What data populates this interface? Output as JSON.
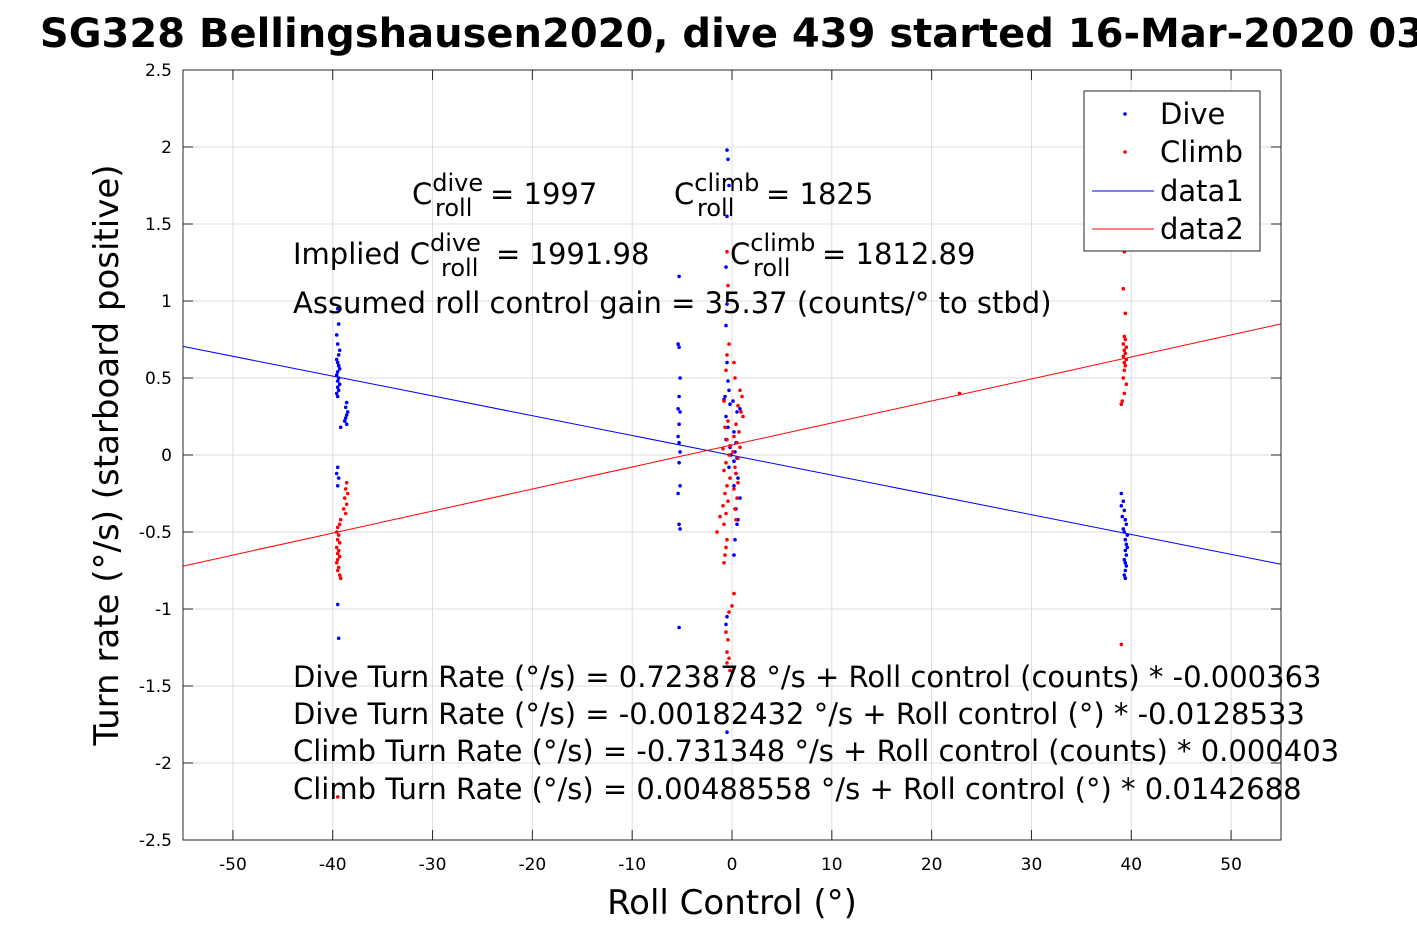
{
  "chart_data": {
    "type": "scatter",
    "title": "SG328 Bellingshausen2020, dive 439 started 16-Mar-2020 03",
    "xlabel": "Roll Control (°)",
    "ylabel": "Turn rate (°/s) (starboard positive)",
    "xlim": [
      -55,
      55
    ],
    "ylim": [
      -2.5,
      2.5
    ],
    "xticks": [
      -50,
      -40,
      -30,
      -20,
      -10,
      0,
      10,
      20,
      30,
      40,
      50
    ],
    "yticks": [
      -2.5,
      -2,
      -1.5,
      -1,
      -0.5,
      0,
      0.5,
      1,
      1.5,
      2,
      2.5
    ],
    "xtick_labels": [
      "-50",
      "-40",
      "-30",
      "-20",
      "-10",
      "0",
      "10",
      "20",
      "30",
      "40",
      "50"
    ],
    "ytick_labels": [
      "-2.5",
      "-2",
      "-1.5",
      "-1",
      "-0.5",
      "0",
      "0.5",
      "1",
      "1.5",
      "2",
      "2.5"
    ],
    "grid": true,
    "legend_position": "top-right",
    "legend": [
      "Dive",
      "Climb",
      "data1",
      "data2"
    ],
    "series": [
      {
        "name": "Dive",
        "kind": "scatter",
        "color": "#0000ff",
        "points": [
          [
            -39.5,
            0.95
          ],
          [
            -39.4,
            0.85
          ],
          [
            -39.6,
            0.78
          ],
          [
            -39.5,
            0.72
          ],
          [
            -39.3,
            0.68
          ],
          [
            -39.4,
            0.65
          ],
          [
            -39.6,
            0.62
          ],
          [
            -39.5,
            0.6
          ],
          [
            -39.4,
            0.58
          ],
          [
            -39.3,
            0.56
          ],
          [
            -39.5,
            0.54
          ],
          [
            -39.6,
            0.52
          ],
          [
            -39.4,
            0.5
          ],
          [
            -39.5,
            0.48
          ],
          [
            -39.3,
            0.46
          ],
          [
            -39.5,
            0.44
          ],
          [
            -39.4,
            0.42
          ],
          [
            -39.6,
            0.4
          ],
          [
            -39.5,
            0.38
          ],
          [
            -38.6,
            0.34
          ],
          [
            -38.7,
            0.31
          ],
          [
            -38.5,
            0.28
          ],
          [
            -38.6,
            0.26
          ],
          [
            -38.7,
            0.24
          ],
          [
            -38.8,
            0.22
          ],
          [
            -38.6,
            0.2
          ],
          [
            -39.2,
            0.18
          ],
          [
            -39.5,
            -0.08
          ],
          [
            -39.6,
            -0.12
          ],
          [
            -39.4,
            -0.15
          ],
          [
            -39.5,
            -0.2
          ],
          [
            -39.5,
            -0.97
          ],
          [
            -39.4,
            -1.19
          ],
          [
            -5.3,
            1.16
          ],
          [
            -5.4,
            0.72
          ],
          [
            -5.3,
            0.7
          ],
          [
            -5.2,
            0.5
          ],
          [
            -5.3,
            0.38
          ],
          [
            -5.4,
            0.3
          ],
          [
            -5.2,
            0.28
          ],
          [
            -5.3,
            0.2
          ],
          [
            -5.4,
            0.12
          ],
          [
            -5.3,
            0.08
          ],
          [
            -5.2,
            0.02
          ],
          [
            -5.3,
            -0.05
          ],
          [
            -5.2,
            -0.2
          ],
          [
            -5.4,
            -0.25
          ],
          [
            -5.3,
            -0.45
          ],
          [
            -5.2,
            -0.48
          ],
          [
            -5.3,
            -1.12
          ],
          [
            -0.5,
            1.98
          ],
          [
            -0.4,
            1.92
          ],
          [
            -0.3,
            1.75
          ],
          [
            -0.5,
            1.55
          ],
          [
            -0.6,
            1.22
          ],
          [
            -0.4,
            1.05
          ],
          [
            -0.5,
            0.98
          ],
          [
            -0.6,
            0.84
          ],
          [
            -0.5,
            0.6
          ],
          [
            -0.4,
            0.48
          ],
          [
            -0.3,
            0.42
          ],
          [
            -0.7,
            0.38
          ],
          [
            -0.8,
            0.36
          ],
          [
            -0.2,
            0.33
          ],
          [
            0.1,
            0.35
          ],
          [
            -0.6,
            0.25
          ],
          [
            0.5,
            0.28
          ],
          [
            0.8,
            0.3
          ],
          [
            -0.4,
            0.18
          ],
          [
            0.2,
            0.15
          ],
          [
            -0.6,
            0.1
          ],
          [
            0.4,
            0.08
          ],
          [
            -0.2,
            0.05
          ],
          [
            0.3,
            0.02
          ],
          [
            -0.1,
            0.0
          ],
          [
            0.5,
            -0.02
          ],
          [
            0.2,
            -0.04
          ],
          [
            -0.3,
            -0.08
          ],
          [
            0.4,
            -0.12
          ],
          [
            0.6,
            -0.15
          ],
          [
            0.2,
            -0.2
          ],
          [
            0.8,
            -0.28
          ],
          [
            0.4,
            -0.35
          ],
          [
            0.6,
            -0.42
          ],
          [
            0.5,
            -0.45
          ],
          [
            0.3,
            -0.55
          ],
          [
            0.2,
            -0.65
          ],
          [
            -0.5,
            -1.05
          ],
          [
            -0.6,
            -1.1
          ],
          [
            -0.5,
            -1.8
          ],
          [
            39.0,
            -0.25
          ],
          [
            39.2,
            -0.3
          ],
          [
            39.0,
            -0.33
          ],
          [
            39.3,
            -0.36
          ],
          [
            39.1,
            -0.4
          ],
          [
            39.4,
            -0.42
          ],
          [
            39.5,
            -0.45
          ],
          [
            39.2,
            -0.48
          ],
          [
            39.3,
            -0.5
          ],
          [
            39.6,
            -0.52
          ],
          [
            39.4,
            -0.55
          ],
          [
            39.5,
            -0.58
          ],
          [
            39.6,
            -0.6
          ],
          [
            39.4,
            -0.62
          ],
          [
            39.5,
            -0.65
          ],
          [
            39.3,
            -0.68
          ],
          [
            39.4,
            -0.7
          ],
          [
            39.5,
            -0.72
          ],
          [
            39.4,
            -0.75
          ],
          [
            39.3,
            -0.78
          ],
          [
            39.4,
            -0.8
          ]
        ]
      },
      {
        "name": "Climb",
        "kind": "scatter",
        "color": "#ff0000",
        "points": [
          [
            -38.6,
            -0.18
          ],
          [
            -38.7,
            -0.22
          ],
          [
            -38.5,
            -0.25
          ],
          [
            -38.8,
            -0.28
          ],
          [
            -38.6,
            -0.32
          ],
          [
            -38.9,
            -0.35
          ],
          [
            -38.7,
            -0.38
          ],
          [
            -39.2,
            -0.42
          ],
          [
            -39.3,
            -0.45
          ],
          [
            -39.5,
            -0.47
          ],
          [
            -39.6,
            -0.5
          ],
          [
            -39.4,
            -0.52
          ],
          [
            -39.5,
            -0.55
          ],
          [
            -39.3,
            -0.57
          ],
          [
            -39.6,
            -0.6
          ],
          [
            -39.4,
            -0.62
          ],
          [
            -39.5,
            -0.64
          ],
          [
            -39.3,
            -0.66
          ],
          [
            -39.5,
            -0.68
          ],
          [
            -39.6,
            -0.7
          ],
          [
            -39.4,
            -0.73
          ],
          [
            -39.5,
            -0.75
          ],
          [
            -39.3,
            -0.78
          ],
          [
            -39.2,
            -0.8
          ],
          [
            -0.5,
            1.32
          ],
          [
            -0.4,
            1.1
          ],
          [
            -0.3,
            0.72
          ],
          [
            -0.5,
            0.65
          ],
          [
            0.2,
            0.6
          ],
          [
            -0.6,
            0.55
          ],
          [
            0.3,
            0.5
          ],
          [
            0.8,
            0.42
          ],
          [
            1.0,
            0.38
          ],
          [
            -0.8,
            0.35
          ],
          [
            0.6,
            0.32
          ],
          [
            0.9,
            0.28
          ],
          [
            1.1,
            0.25
          ],
          [
            -0.4,
            0.22
          ],
          [
            0.4,
            0.2
          ],
          [
            -0.7,
            0.18
          ],
          [
            0.7,
            0.15
          ],
          [
            0.2,
            0.12
          ],
          [
            -0.5,
            0.1
          ],
          [
            0.5,
            0.08
          ],
          [
            -0.2,
            0.06
          ],
          [
            0.8,
            0.05
          ],
          [
            -0.9,
            0.04
          ],
          [
            0.1,
            0.02
          ],
          [
            -0.3,
            0.0
          ],
          [
            0.6,
            -0.02
          ],
          [
            -0.6,
            -0.05
          ],
          [
            0.3,
            -0.08
          ],
          [
            -0.8,
            -0.1
          ],
          [
            0.4,
            -0.12
          ],
          [
            -0.2,
            -0.15
          ],
          [
            0.6,
            -0.18
          ],
          [
            -0.5,
            -0.2
          ],
          [
            0.2,
            -0.22
          ],
          [
            -0.7,
            -0.25
          ],
          [
            0.5,
            -0.28
          ],
          [
            -0.4,
            -0.3
          ],
          [
            -0.9,
            -0.33
          ],
          [
            0.3,
            -0.35
          ],
          [
            -0.6,
            -0.38
          ],
          [
            -1.2,
            -0.4
          ],
          [
            0.4,
            -0.42
          ],
          [
            -0.8,
            -0.45
          ],
          [
            -1.5,
            -0.5
          ],
          [
            -0.5,
            -0.55
          ],
          [
            -0.6,
            -0.6
          ],
          [
            -0.7,
            -0.65
          ],
          [
            -0.8,
            -0.7
          ],
          [
            0.2,
            -0.9
          ],
          [
            0.0,
            -0.98
          ],
          [
            -0.3,
            -1.02
          ],
          [
            -0.6,
            -1.15
          ],
          [
            -0.4,
            -1.2
          ],
          [
            -0.5,
            -1.28
          ],
          [
            -0.3,
            -1.32
          ],
          [
            -0.5,
            -1.35
          ],
          [
            -0.2,
            -1.4
          ],
          [
            22.8,
            0.4
          ],
          [
            39.3,
            1.32
          ],
          [
            39.2,
            1.08
          ],
          [
            39.4,
            0.92
          ],
          [
            39.3,
            0.77
          ],
          [
            39.4,
            0.75
          ],
          [
            39.2,
            0.72
          ],
          [
            39.5,
            0.7
          ],
          [
            39.3,
            0.68
          ],
          [
            39.4,
            0.66
          ],
          [
            39.2,
            0.64
          ],
          [
            39.5,
            0.62
          ],
          [
            39.3,
            0.6
          ],
          [
            39.4,
            0.58
          ],
          [
            39.3,
            0.55
          ],
          [
            39.2,
            0.5
          ],
          [
            39.5,
            0.46
          ],
          [
            39.3,
            0.4
          ],
          [
            39.1,
            0.35
          ],
          [
            39.0,
            0.33
          ],
          [
            39.0,
            -1.23
          ],
          [
            -39.5,
            -2.22
          ]
        ]
      },
      {
        "name": "data1",
        "kind": "line",
        "color": "#0000ff",
        "x": [
          -55,
          55
        ],
        "y": [
          0.705,
          -0.709
        ]
      },
      {
        "name": "data2",
        "kind": "line",
        "color": "#ff0000",
        "x": [
          -55,
          55
        ],
        "y": [
          -0.7215,
          0.8513
        ]
      }
    ],
    "annotations": {
      "c_roll_dive": {
        "base": "C",
        "sup": "dive",
        "sub": "roll",
        "rest": " = 1997"
      },
      "c_roll_climb": {
        "base": "C",
        "sup": "climb",
        "sub": "roll",
        "rest": " = 1825"
      },
      "implied_dive": {
        "prefix": "Implied C",
        "sup": "dive",
        "sub": "roll",
        "rest": " = 1991.98"
      },
      "implied_climb": {
        "base": "C",
        "sup": "climb",
        "sub": "roll",
        "rest": " = 1812.89"
      },
      "gain": "Assumed roll control gain = 35.37 (counts/° to stbd)",
      "eq1": "Dive Turn Rate (°/s) = 0.723878 °/s + Roll control (counts) * -0.000363",
      "eq2": "Dive Turn Rate (°/s) = -0.00182432 °/s + Roll control (°) * -0.0128533",
      "eq3": "Climb Turn Rate (°/s) = -0.731348 °/s + Roll control (counts) * 0.000403",
      "eq4": "Climb Turn Rate (°/s) = 0.00488558 °/s + Roll control (°) * 0.0142688"
    }
  }
}
